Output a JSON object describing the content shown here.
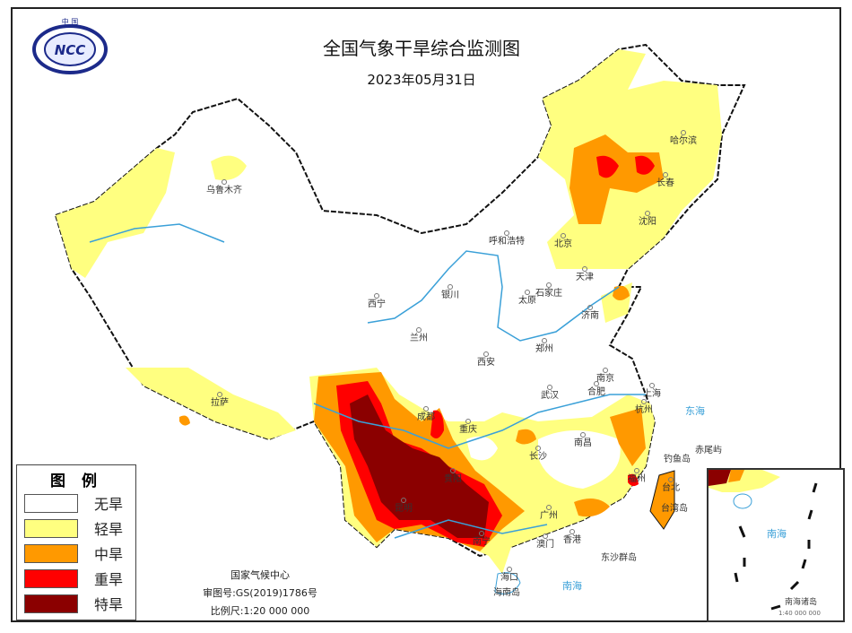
{
  "header": {
    "title": "全国气象干旱综合监测图",
    "date": "2023年05月31日",
    "logo_text": "NCC 中国"
  },
  "colors": {
    "none": "#ffffff",
    "light": "#ffff80",
    "moderate": "#ff9900",
    "severe": "#ff0000",
    "extreme": "#8b0000",
    "water": "#3aa0d8",
    "border": "#111111"
  },
  "legend": {
    "title": "图 例",
    "items": [
      {
        "label": "无旱",
        "color": "#ffffff"
      },
      {
        "label": "轻旱",
        "color": "#ffff80"
      },
      {
        "label": "中旱",
        "color": "#ff9900"
      },
      {
        "label": "重旱",
        "color": "#ff0000"
      },
      {
        "label": "特旱",
        "color": "#8b0000"
      }
    ]
  },
  "credits": {
    "agency": "国家气候中心",
    "approval": "审图号:GS(2019)1786号",
    "scale": "比例尺:1:20 000 000"
  },
  "inset": {
    "title": "南海诸岛",
    "scale": "1:40 000 000",
    "sea": "南海"
  },
  "cities": [
    "乌鲁木齐",
    "拉萨",
    "西宁",
    "兰州",
    "银川",
    "呼和浩特",
    "北京",
    "天津",
    "石家庄",
    "太原",
    "济南",
    "郑州",
    "西安",
    "南京",
    "合肥",
    "上海",
    "武汉",
    "杭州",
    "成都",
    "重庆",
    "南昌",
    "长沙",
    "贵阳",
    "昆明",
    "福州",
    "台北",
    "南宁",
    "广州",
    "澳门",
    "香港",
    "海口",
    "哈尔滨",
    "长春",
    "沈阳"
  ],
  "seas": [
    "南海",
    "东海",
    "东沙群岛",
    "钓鱼岛",
    "赤尾屿",
    "台湾岛",
    "海南岛"
  ]
}
